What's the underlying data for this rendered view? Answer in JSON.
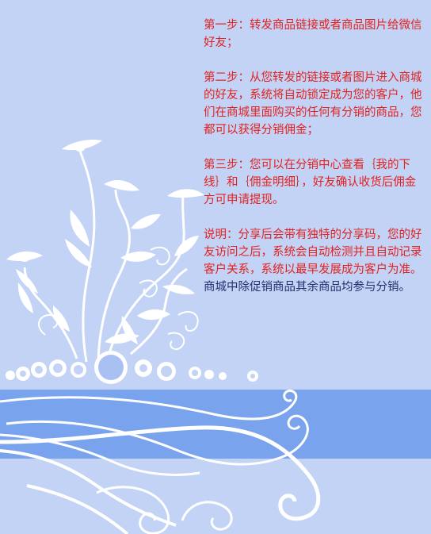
{
  "colors": {
    "background": "#c2d3f6",
    "band": "#79a3ec",
    "ornament": "#ffffff",
    "highlight_text": "#e3211f",
    "normal_text": "#232f6a"
  },
  "instructions": {
    "step1": "第一步：转发商品链接或者商品图片给微信好友；",
    "step2": "第二步：从您转发的链接或者图片进入商城的好友，系统将自动锁定成为您的客户，他们在商城里面购买的任何有分销的商品，您都可以获得分销佣金；",
    "step3": "第三步：您可以在分销中心查看｛我的下线｝和｛佣金明细｝，好友确认收货后佣金方可申请提现。",
    "note": "说明：分享后会带有独特的分享码，您的好友访问之后，系统会自动检测并且自动记录客户关系，系统以最早发展成为客户为准。",
    "extra": "商城中除促销商品其余商品均参与分销。"
  },
  "decoration": {
    "floral_art_icon": "floral-swirl-illustration"
  }
}
